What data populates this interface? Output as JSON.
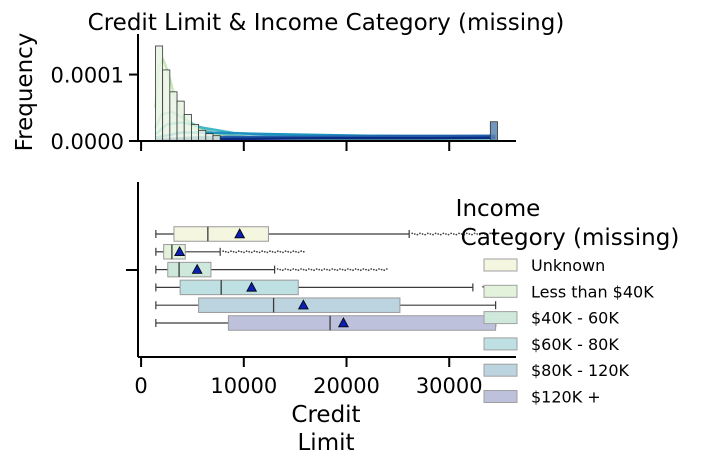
{
  "chart_data": [
    {
      "type": "histogram",
      "title": "Credit Limit & Income Category (missing)",
      "xlabel": "",
      "ylabel": "Frequency",
      "xlim": [
        -300,
        36500
      ],
      "ylim": [
        0,
        0.000155
      ],
      "x_ticks": [
        0,
        10000,
        20000,
        30000
      ],
      "y_ticks": [
        {
          "value": 0,
          "label": "0.0000"
        },
        {
          "value": 0.0001,
          "label": "0.0001"
        }
      ],
      "bins": [
        {
          "x0": 1400,
          "x1": 2100,
          "y": 0.000143
        },
        {
          "x0": 2100,
          "x1": 2800,
          "y": 0.000107
        },
        {
          "x0": 2800,
          "x1": 3500,
          "y": 7.4e-05
        },
        {
          "x0": 3500,
          "x1": 4200,
          "y": 6e-05
        },
        {
          "x0": 4200,
          "x1": 4900,
          "y": 4e-05
        },
        {
          "x0": 4900,
          "x1": 5600,
          "y": 2.5e-05
        },
        {
          "x0": 5600,
          "x1": 6300,
          "y": 1.6e-05
        },
        {
          "x0": 6300,
          "x1": 7000,
          "y": 1.1e-05
        },
        {
          "x0": 7000,
          "x1": 7700,
          "y": 8e-06
        },
        {
          "x0": 34000,
          "x1": 34700,
          "y": 2.9e-05
        }
      ],
      "kde_series": [
        {
          "color": "#c7e9b4",
          "x": [
            1400,
            1700,
            2100,
            2600,
            3200,
            4000,
            5000,
            6500,
            8500,
            12000,
            20000,
            34500
          ],
          "y": [
            5e-05,
            0.00011,
            0.000124,
            0.000105,
            7e-05,
            4e-05,
            2.2e-05,
            1.2e-05,
            7.5e-06,
            5e-06,
            2e-06,
            1e-06
          ]
        },
        {
          "color": "#7fcdbb",
          "x": [
            1400,
            2000,
            3000,
            4000,
            5500,
            7000,
            9000,
            12000,
            20000,
            34500
          ],
          "y": [
            2e-05,
            4e-05,
            4.4e-05,
            3.5e-05,
            2.2e-05,
            1.3e-05,
            8e-06,
            5e-06,
            3e-06,
            2e-06
          ]
        },
        {
          "color": "#41b6c4",
          "x": [
            1400,
            2500,
            4000,
            6000,
            9000,
            14000,
            22000,
            34500
          ],
          "y": [
            1e-05,
            2.5e-05,
            2.8e-05,
            2e-05,
            1.2e-05,
            8e-06,
            6e-06,
            5e-06
          ]
        },
        {
          "color": "#1d91c0",
          "x": [
            1400,
            4000,
            8000,
            14000,
            22000,
            34500
          ],
          "y": [
            5e-06,
            1.3e-05,
            1.2e-05,
            1e-05,
            8e-06,
            7e-06
          ]
        },
        {
          "color": "#225ea8",
          "x": [
            1400,
            6000,
            14000,
            24000,
            34500
          ],
          "y": [
            2e-06,
            6e-06,
            6e-06,
            7e-06,
            8e-06
          ]
        },
        {
          "color": "#0c2c84",
          "x": [
            1400,
            8000,
            18000,
            28000,
            34500
          ],
          "y": [
            1e-06,
            3e-06,
            4e-06,
            4e-06,
            5e-06
          ]
        }
      ]
    },
    {
      "type": "boxplot",
      "xlabel": "Credit\nLimit",
      "ylabel": "",
      "xlim": [
        -300,
        36500
      ],
      "x_ticks": [
        0,
        10000,
        20000,
        30000
      ],
      "legend": {
        "title": "Income\nCategory (missing)",
        "placement": "right"
      },
      "categories": [
        "Unknown",
        "Less than $40K",
        "$40K-$60K",
        "$60K-$80K",
        "$80K-$120K",
        "$120K +"
      ],
      "legend_labels": [
        "Unknown",
        "Less than $40K",
        "$40K - 60K",
        "$60K - 80K",
        "$80K - 120K",
        "$120K +"
      ],
      "colors": [
        "#f4f6e0",
        "#e3f2da",
        "#cfe8dc",
        "#bfe0e3",
        "#bcd4e0",
        "#bec1dc"
      ],
      "boxes": [
        {
          "category": "Unknown",
          "whisker_low": 1438,
          "q1": 3200,
          "median": 6500,
          "q3": 12400,
          "whisker_high": 26100,
          "mean": 9600,
          "outlier_range": [
            26100,
            34516
          ]
        },
        {
          "category": "Less than $40K",
          "whisker_low": 1438,
          "q1": 2200,
          "median": 3000,
          "q3": 4300,
          "whisker_high": 7700,
          "mean": 3750,
          "outlier_range": [
            7700,
            16000
          ]
        },
        {
          "category": "$40K-$60K",
          "whisker_low": 1438,
          "q1": 2600,
          "median": 3700,
          "q3": 6800,
          "whisker_high": 13000,
          "mean": 5460,
          "outlier_range": [
            13000,
            24000
          ]
        },
        {
          "category": "$60K-$80K",
          "whisker_low": 1438,
          "q1": 3800,
          "median": 7800,
          "q3": 15300,
          "whisker_high": 32300,
          "mean": 10760,
          "outlier_range": [
            33000,
            34516
          ]
        },
        {
          "category": "$80K-$120K",
          "whisker_low": 1438,
          "q1": 5600,
          "median": 12900,
          "q3": 25200,
          "whisker_high": 34516,
          "mean": 15800,
          "outlier_range": null
        },
        {
          "category": "$120K +",
          "whisker_low": 1438,
          "q1": 8500,
          "median": 18400,
          "q3": 34516,
          "whisker_high": 34516,
          "mean": 19700,
          "outlier_range": null
        }
      ]
    }
  ]
}
